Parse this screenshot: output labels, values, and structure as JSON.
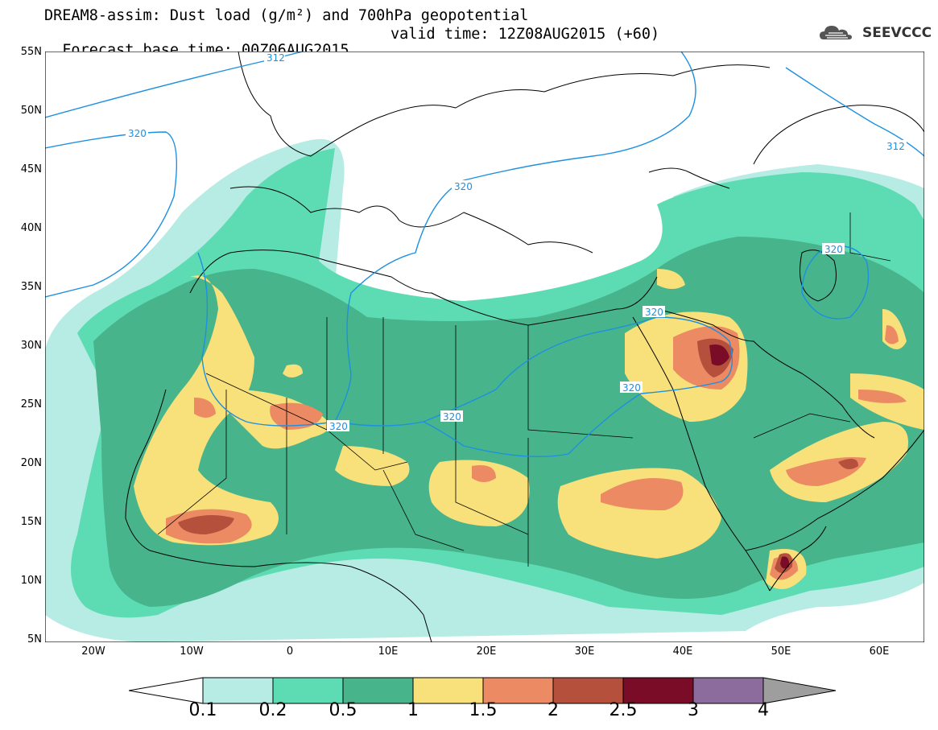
{
  "header": {
    "title": "DREAM8-assim: Dust load (g/m²) and 700hPa geopotential",
    "base_time": "Forecast base time: 00Z06AUG2015",
    "valid_time": "valid time: 12Z08AUG2015 (+60)"
  },
  "logo": {
    "text": "SEEVCCC",
    "icon": "cloud-logo-icon"
  },
  "map": {
    "lat_labels": [
      "55N",
      "50N",
      "45N",
      "40N",
      "35N",
      "30N",
      "25N",
      "20N",
      "15N",
      "10N",
      "5N"
    ],
    "lon_labels": [
      "20W",
      "10W",
      "0",
      "10E",
      "20E",
      "30E",
      "40E",
      "50E",
      "60E"
    ],
    "contour_labels": [
      "312",
      "320",
      "320",
      "312",
      "320",
      "320",
      "320",
      "320",
      "320"
    ]
  },
  "colorbar": {
    "labels": [
      "0.1",
      "0.2",
      "0.5",
      "1",
      "1.5",
      "2",
      "2.5",
      "3",
      "4"
    ],
    "colors": [
      "#ffffff",
      "#b6ece4",
      "#5ddcb4",
      "#47b48c",
      "#f8e07a",
      "#eb8a63",
      "#b4503c",
      "#7a0c28",
      "#8c6c9c",
      "#9e9e9e"
    ]
  },
  "colors": {
    "dust_0_1": "#b6ece4",
    "dust_0_2": "#5ddcb4",
    "dust_0_5": "#47b48c",
    "dust_1": "#f8e07a",
    "dust_1_5": "#eb8a63",
    "dust_2": "#b4503c",
    "dust_2_5": "#7a0c28",
    "contour": "#1e90e0",
    "coast": "#000000"
  }
}
